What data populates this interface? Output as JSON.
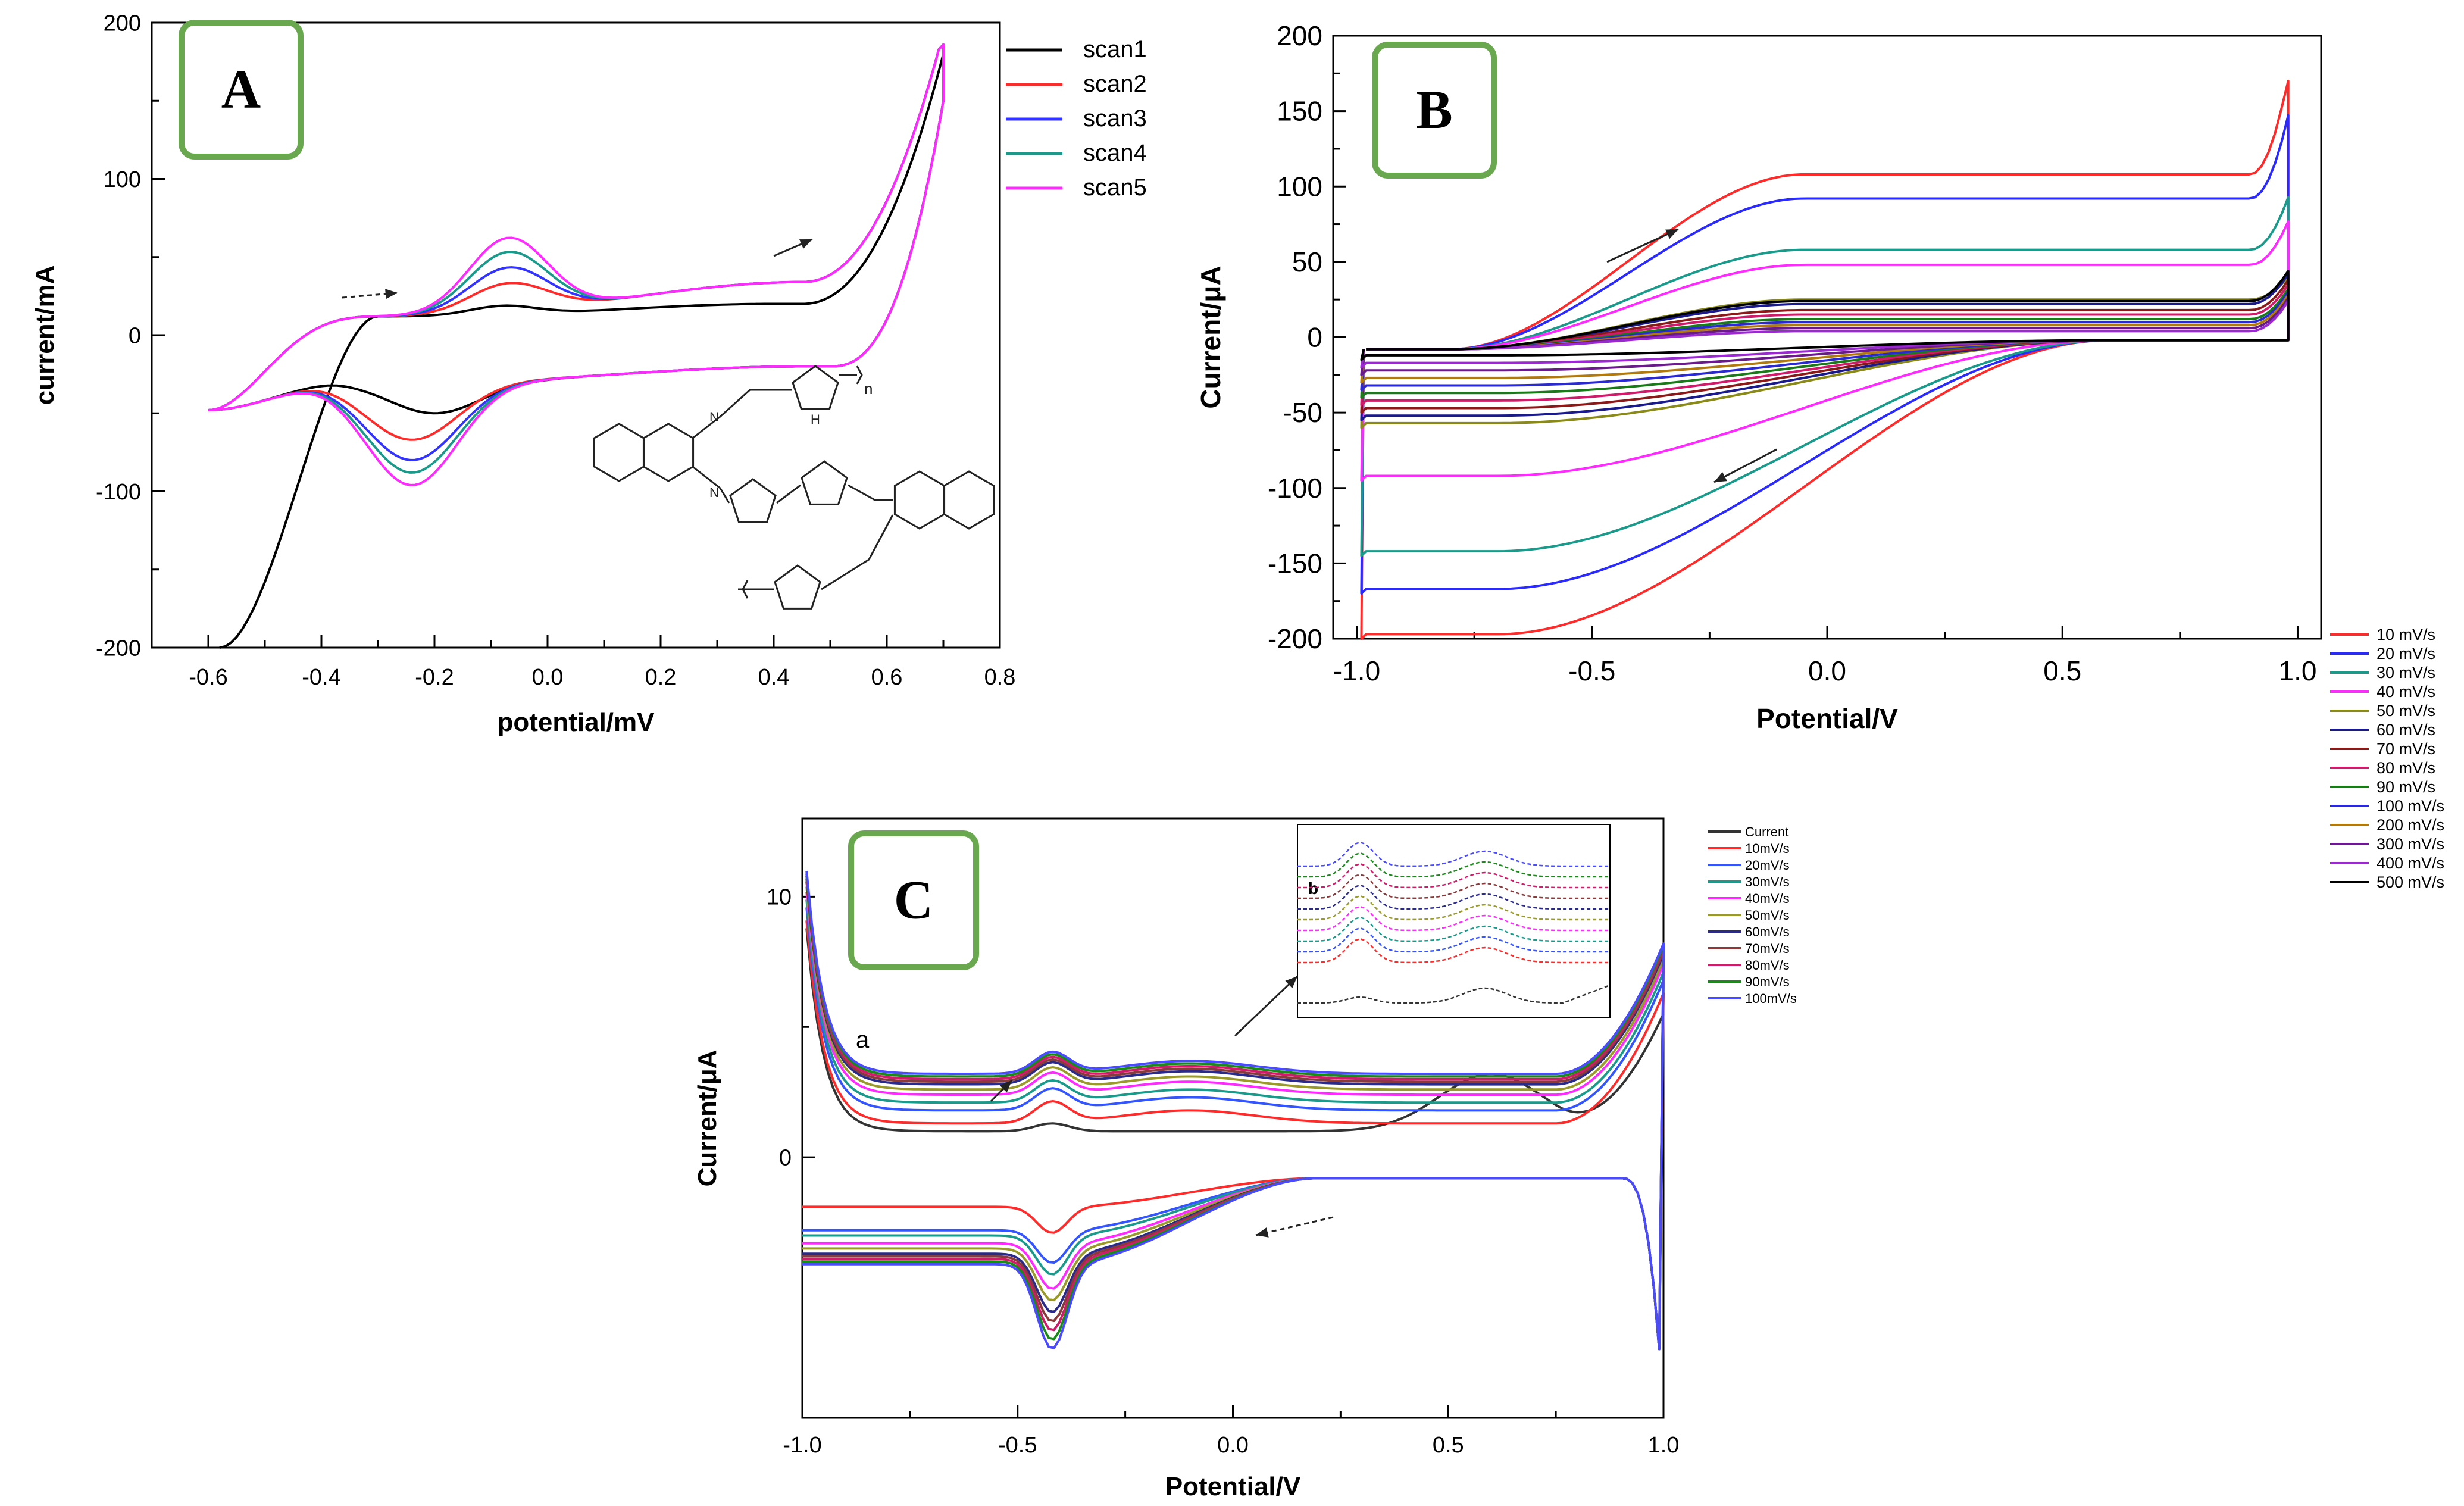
{
  "chart_data": [
    {
      "id": "A",
      "type": "line",
      "badge": "A",
      "xlabel": "potential/mV",
      "ylabel": "current/mA",
      "xlim": [
        -0.7,
        0.8
      ],
      "ylim": [
        -200,
        200
      ],
      "xticks": [
        -0.6,
        -0.4,
        -0.2,
        0.0,
        0.2,
        0.4,
        0.6,
        0.8
      ],
      "xtick_labels": [
        "-0.6",
        "-0.4",
        "-0.2",
        "0.0",
        "0.2",
        "0.4",
        "0.6",
        "0.8"
      ],
      "yticks": [
        -200,
        -100,
        0,
        100,
        200
      ],
      "ytick_labels": [
        "-200",
        "-100",
        "0",
        "100",
        "200"
      ],
      "legend_position": "top-right outside",
      "structure_labels": [
        "n",
        "H",
        "N"
      ],
      "series": [
        {
          "name": "scan1",
          "color": "#000000",
          "fwd_peak": 20,
          "rev_peak": -40,
          "start": "initial"
        },
        {
          "name": "scan2",
          "color": "#ff2a2a",
          "fwd_peak": 35,
          "rev_peak": -57
        },
        {
          "name": "scan3",
          "color": "#3333ff",
          "fwd_peak": 45,
          "rev_peak": -70
        },
        {
          "name": "scan4",
          "color": "#1a9a8a",
          "fwd_peak": 55,
          "rev_peak": -78
        },
        {
          "name": "scan5",
          "color": "#ff2aff",
          "fwd_peak": 64,
          "rev_peak": -86
        }
      ]
    },
    {
      "id": "B",
      "type": "line",
      "badge": "B",
      "xlabel": "Potential/V",
      "ylabel": "Current/μA",
      "xlim": [
        -1.05,
        1.05
      ],
      "ylim": [
        -200,
        200
      ],
      "xticks": [
        -1.0,
        -0.5,
        0.0,
        0.5,
        1.0
      ],
      "xtick_labels": [
        "-1.0",
        "-0.5",
        "0.0",
        "0.5",
        "1.0"
      ],
      "yticks": [
        -200,
        -150,
        -100,
        -50,
        0,
        50,
        100,
        150,
        200
      ],
      "ytick_labels": [
        "-200",
        "-150",
        "-100",
        "-50",
        "0",
        "50",
        "100",
        "150",
        "200"
      ],
      "legend_position": "right outside",
      "series": [
        {
          "name": "10 mV/s",
          "color": "#ff2a2a",
          "upper": 108,
          "lower": -195
        },
        {
          "name": "20 mV/s",
          "color": "#2a2aff",
          "upper": 92,
          "lower": -165
        },
        {
          "name": "30 mV/s",
          "color": "#1a9a8a",
          "upper": 58,
          "lower": -140
        },
        {
          "name": "40 mV/s",
          "color": "#ff2aff",
          "upper": 48,
          "lower": -90
        },
        {
          "name": "50 mV/s",
          "color": "#8a8a1a",
          "upper": 25,
          "lower": -55
        },
        {
          "name": "60 mV/s",
          "color": "#1a1a8a",
          "upper": 22,
          "lower": -50
        },
        {
          "name": "70 mV/s",
          "color": "#8a1a1a",
          "upper": 18,
          "lower": -45
        },
        {
          "name": "80 mV/s",
          "color": "#d01a6a",
          "upper": 15,
          "lower": -40
        },
        {
          "name": "90 mV/s",
          "color": "#1a7a1a",
          "upper": 12,
          "lower": -35
        },
        {
          "name": "100 mV/s",
          "color": "#2a2ad0",
          "upper": 10,
          "lower": -30
        },
        {
          "name": "200 mV/s",
          "color": "#b07a10",
          "upper": 8,
          "lower": -25
        },
        {
          "name": "300 mV/s",
          "color": "#6a1a8a",
          "upper": 6,
          "lower": -20
        },
        {
          "name": "400 mV/s",
          "color": "#9a2ad0",
          "upper": 4,
          "lower": -15
        },
        {
          "name": "500 mV/s",
          "color": "#000000",
          "upper": 24,
          "lower": -10
        }
      ]
    },
    {
      "id": "C",
      "type": "line",
      "badge": "C",
      "xlabel": "Potential/V",
      "ylabel": "Current/μA",
      "xlim": [
        -1.0,
        1.0
      ],
      "ylim": [
        -10,
        13
      ],
      "xticks": [
        -1.0,
        -0.5,
        0.0,
        0.5,
        1.0
      ],
      "xtick_labels": [
        "-1.0",
        "-0.5",
        "0.0",
        "0.5",
        "1.0"
      ],
      "yticks": [
        0,
        10
      ],
      "ytick_labels": [
        "0",
        "10"
      ],
      "annotations": [
        "a",
        "b"
      ],
      "legend_position": "right outside",
      "series": [
        {
          "name": "Current",
          "color": "#333333",
          "upper": 1.2,
          "lower": null
        },
        {
          "name": "10mV/s",
          "color": "#ff2a2a",
          "upper": 1.8,
          "lower": -1.9
        },
        {
          "name": "20mV/s",
          "color": "#3355ff",
          "upper": 2.3,
          "lower": -2.8
        },
        {
          "name": "30mV/s",
          "color": "#1a9a8a",
          "upper": 2.6,
          "lower": -3.0
        },
        {
          "name": "40mV/s",
          "color": "#ff2aff",
          "upper": 2.9,
          "lower": -3.3
        },
        {
          "name": "50mV/s",
          "color": "#9a9a2a",
          "upper": 3.1,
          "lower": -3.5
        },
        {
          "name": "60mV/s",
          "color": "#2a2a8a",
          "upper": 3.3,
          "lower": -3.7
        },
        {
          "name": "70mV/s",
          "color": "#8a3a3a",
          "upper": 3.4,
          "lower": -3.8
        },
        {
          "name": "80mV/s",
          "color": "#d01a6a",
          "upper": 3.5,
          "lower": -3.9
        },
        {
          "name": "90mV/s",
          "color": "#1a8a1a",
          "upper": 3.6,
          "lower": -4.0
        },
        {
          "name": "100mV/s",
          "color": "#4a4aff",
          "upper": 3.7,
          "lower": -4.1
        }
      ]
    }
  ]
}
